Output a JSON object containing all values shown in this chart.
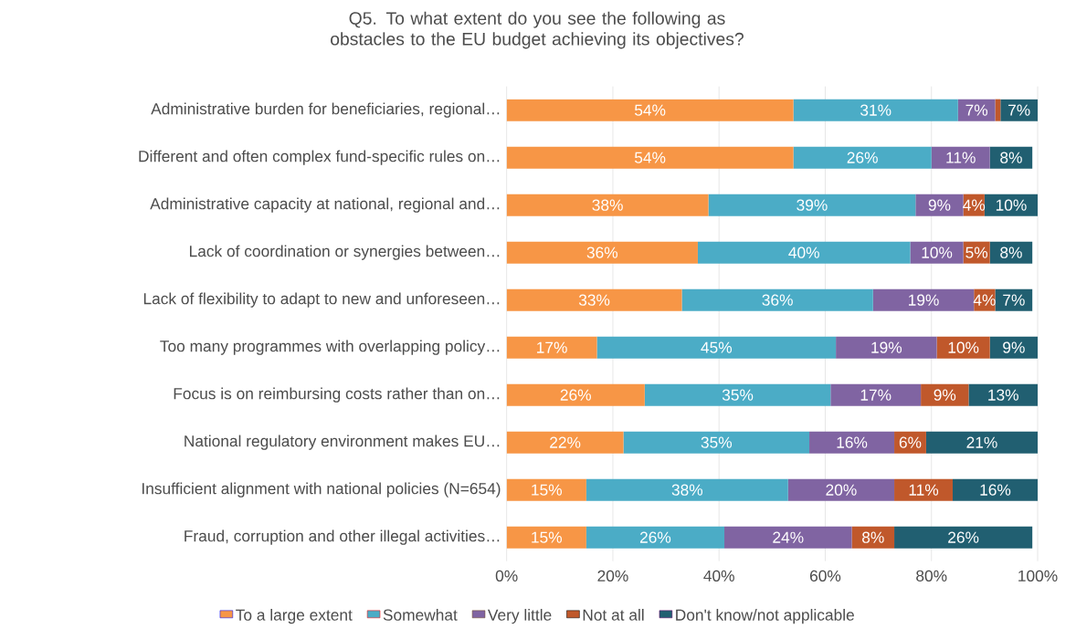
{
  "chart_data": {
    "type": "bar",
    "orientation": "horizontal",
    "stacked": true,
    "title": "Q5. To what extent do you see the following as obstacles to the EU budget achieving its objectives?",
    "categories": [
      "Administrative burden for beneficiaries, regional…",
      "Different and often complex fund-specific rules on…",
      "Administrative capacity at national, regional and…",
      "Lack of coordination or synergies between…",
      "Lack of flexibility to adapt to new and unforeseen…",
      "Too many programmes with overlapping policy…",
      "Focus is on reimbursing costs rather than on…",
      "National regulatory environment makes EU…",
      "Insufficient alignment with national policies (N=654)",
      "Fraud, corruption and other illegal activities…"
    ],
    "series": [
      {
        "name": "To a large extent",
        "color": "#f79646",
        "values": [
          54,
          54,
          38,
          36,
          33,
          17,
          26,
          22,
          15,
          15
        ],
        "value_labels": [
          "54%",
          "54%",
          "38%",
          "36%",
          "33%",
          "17%",
          "26%",
          "22%",
          "15%",
          "15%"
        ]
      },
      {
        "name": "Somewhat",
        "color": "#4bacc6",
        "values": [
          31,
          26,
          39,
          40,
          36,
          45,
          35,
          35,
          38,
          26
        ],
        "value_labels": [
          "31%",
          "26%",
          "39%",
          "40%",
          "36%",
          "45%",
          "35%",
          "35%",
          "38%",
          "26%"
        ]
      },
      {
        "name": "Very little",
        "color": "#8064a2",
        "values": [
          7,
          11,
          9,
          10,
          19,
          19,
          17,
          16,
          20,
          24
        ],
        "value_labels": [
          "7%",
          "11%",
          "9%",
          "10%",
          "19%",
          "19%",
          "17%",
          "16%",
          "20%",
          "24%"
        ]
      },
      {
        "name": "Not at all",
        "color": "#c0582b",
        "values": [
          1,
          0,
          4,
          5,
          4,
          10,
          9,
          6,
          11,
          8
        ],
        "value_labels": [
          null,
          null,
          "4%",
          "5%",
          "4%",
          "10%",
          "9%",
          "6%",
          "11%",
          "8%"
        ]
      },
      {
        "name": "Don't know/not applicable",
        "color": "#215f71",
        "values": [
          7,
          8,
          10,
          8,
          7,
          9,
          13,
          21,
          16,
          26
        ],
        "value_labels": [
          "7%",
          "8%",
          "10%",
          "8%",
          "7%",
          "9%",
          "13%",
          "21%",
          "16%",
          "26%"
        ]
      }
    ],
    "xlim": [
      0,
      100
    ],
    "xticks": [
      {
        "value": 0,
        "label": "0%"
      },
      {
        "value": 20,
        "label": "20%"
      },
      {
        "value": 40,
        "label": "40%"
      },
      {
        "value": 60,
        "label": "60%"
      },
      {
        "value": 80,
        "label": "80%"
      },
      {
        "value": 100,
        "label": "100%"
      }
    ],
    "grid": "x",
    "legend": "bottom"
  }
}
